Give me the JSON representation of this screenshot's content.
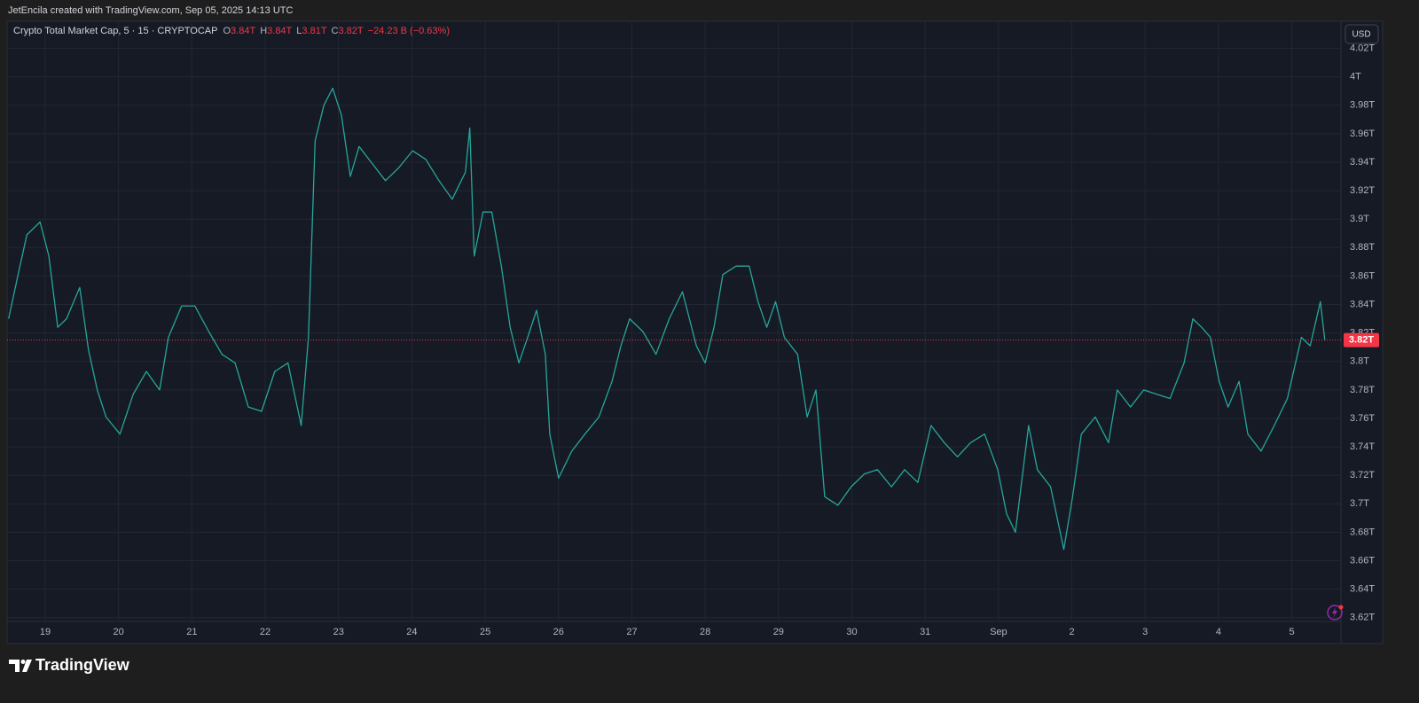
{
  "header": {
    "credit": "JetEncila created with TradingView.com, Sep 05, 2025 14:13 UTC"
  },
  "footer": {
    "brand": "TradingView"
  },
  "currency_button": "USD",
  "legend": {
    "symbol": "Crypto Total Market Cap, 5 · 15 · CRYPTOCAP",
    "open_label": "O",
    "open": "3.84T",
    "high_label": "H",
    "high": "3.84T",
    "low_label": "L",
    "low": "3.81T",
    "close_label": "C",
    "close": "3.82T",
    "change": "−24.23 B (−0.63%)"
  },
  "chart_data": {
    "type": "line",
    "grid": true,
    "x": [
      -0.5,
      -0.37,
      -0.25,
      -0.07,
      0.05,
      0.17,
      0.29,
      0.47,
      0.59,
      0.71,
      0.83,
      1.02,
      1.2,
      1.38,
      1.56,
      1.68,
      1.86,
      2.04,
      2.23,
      2.41,
      2.59,
      2.77,
      2.95,
      3.13,
      3.31,
      3.49,
      3.59,
      3.68,
      3.8,
      3.92,
      4.04,
      4.16,
      4.28,
      4.46,
      4.64,
      4.82,
      5.01,
      5.19,
      5.37,
      5.55,
      5.73,
      5.79,
      5.85,
      5.97,
      6.09,
      6.22,
      6.34,
      6.46,
      6.58,
      6.7,
      6.82,
      6.88,
      7.0,
      7.18,
      7.36,
      7.55,
      7.73,
      7.85,
      7.97,
      8.15,
      8.33,
      8.51,
      8.69,
      8.88,
      9.0,
      9.12,
      9.24,
      9.42,
      9.6,
      9.72,
      9.84,
      9.96,
      10.08,
      10.26,
      10.39,
      10.51,
      10.63,
      10.81,
      10.99,
      11.17,
      11.35,
      11.54,
      11.72,
      11.9,
      12.08,
      12.26,
      12.44,
      12.62,
      12.81,
      12.99,
      13.11,
      13.23,
      13.41,
      13.53,
      13.71,
      13.89,
      14.01,
      14.13,
      14.32,
      14.5,
      14.62,
      14.8,
      14.98,
      15.16,
      15.34,
      15.53,
      15.65,
      15.77,
      15.89,
      16.01,
      16.13,
      16.28,
      16.4,
      16.58,
      16.76,
      16.94,
      17.13,
      17.25,
      17.39,
      17.45
    ],
    "series": [
      {
        "color": "#26a69a",
        "values": [
          3.83,
          3.861,
          3.889,
          3.898,
          3.874,
          3.824,
          3.83,
          3.852,
          3.808,
          3.78,
          3.761,
          3.749,
          3.777,
          3.793,
          3.78,
          3.817,
          3.839,
          3.839,
          3.821,
          3.805,
          3.799,
          3.768,
          3.765,
          3.793,
          3.799,
          3.755,
          3.817,
          3.955,
          3.98,
          3.992,
          3.973,
          3.93,
          3.951,
          3.939,
          3.927,
          3.936,
          3.948,
          3.942,
          3.927,
          3.914,
          3.933,
          3.964,
          3.874,
          3.905,
          3.905,
          3.867,
          3.824,
          3.799,
          3.817,
          3.836,
          3.805,
          3.749,
          3.718,
          3.737,
          3.749,
          3.761,
          3.786,
          3.811,
          3.83,
          3.821,
          3.805,
          3.83,
          3.849,
          3.811,
          3.799,
          3.824,
          3.861,
          3.867,
          3.867,
          3.842,
          3.824,
          3.842,
          3.817,
          3.805,
          3.761,
          3.78,
          3.705,
          3.699,
          3.712,
          3.721,
          3.724,
          3.712,
          3.724,
          3.715,
          3.755,
          3.743,
          3.733,
          3.743,
          3.749,
          3.724,
          3.693,
          3.68,
          3.755,
          3.724,
          3.712,
          3.668,
          3.705,
          3.749,
          3.761,
          3.743,
          3.78,
          3.768,
          3.78,
          3.777,
          3.774,
          3.799,
          3.83,
          3.824,
          3.817,
          3.786,
          3.768,
          3.786,
          3.749,
          3.737,
          3.755,
          3.774,
          3.817,
          3.811,
          3.842,
          3.815
        ]
      }
    ],
    "last_price": {
      "value": 3.815,
      "label": "3.82T",
      "color": "#f23645"
    },
    "xlim": [
      -0.52,
      17.67
    ],
    "xticks": [
      {
        "value": 0,
        "label": "19"
      },
      {
        "value": 1,
        "label": "20"
      },
      {
        "value": 2,
        "label": "21"
      },
      {
        "value": 3,
        "label": "22"
      },
      {
        "value": 4,
        "label": "23"
      },
      {
        "value": 5,
        "label": "24"
      },
      {
        "value": 6,
        "label": "25"
      },
      {
        "value": 7,
        "label": "26"
      },
      {
        "value": 8,
        "label": "27"
      },
      {
        "value": 9,
        "label": "28"
      },
      {
        "value": 10,
        "label": "29"
      },
      {
        "value": 11,
        "label": "30"
      },
      {
        "value": 12,
        "label": "31"
      },
      {
        "value": 13,
        "label": "Sep"
      },
      {
        "value": 14,
        "label": "2"
      },
      {
        "value": 15,
        "label": "3"
      },
      {
        "value": 16,
        "label": "4"
      },
      {
        "value": 17,
        "label": "5"
      }
    ],
    "ylim": [
      3.618,
      4.039
    ],
    "yticks": [
      {
        "value": 3.62,
        "label": "3.62T"
      },
      {
        "value": 3.64,
        "label": "3.64T"
      },
      {
        "value": 3.66,
        "label": "3.66T"
      },
      {
        "value": 3.68,
        "label": "3.68T"
      },
      {
        "value": 3.7,
        "label": "3.7T"
      },
      {
        "value": 3.72,
        "label": "3.72T"
      },
      {
        "value": 3.74,
        "label": "3.74T"
      },
      {
        "value": 3.76,
        "label": "3.76T"
      },
      {
        "value": 3.78,
        "label": "3.78T"
      },
      {
        "value": 3.8,
        "label": "3.8T"
      },
      {
        "value": 3.82,
        "label": "3.82T"
      },
      {
        "value": 3.84,
        "label": "3.84T"
      },
      {
        "value": 3.86,
        "label": "3.86T"
      },
      {
        "value": 3.88,
        "label": "3.88T"
      },
      {
        "value": 3.9,
        "label": "3.9T"
      },
      {
        "value": 3.92,
        "label": "3.92T"
      },
      {
        "value": 3.94,
        "label": "3.94T"
      },
      {
        "value": 3.96,
        "label": "3.96T"
      },
      {
        "value": 3.98,
        "label": "3.98T"
      },
      {
        "value": 4.0,
        "label": "4T"
      },
      {
        "value": 4.02,
        "label": "4.02T"
      }
    ]
  }
}
